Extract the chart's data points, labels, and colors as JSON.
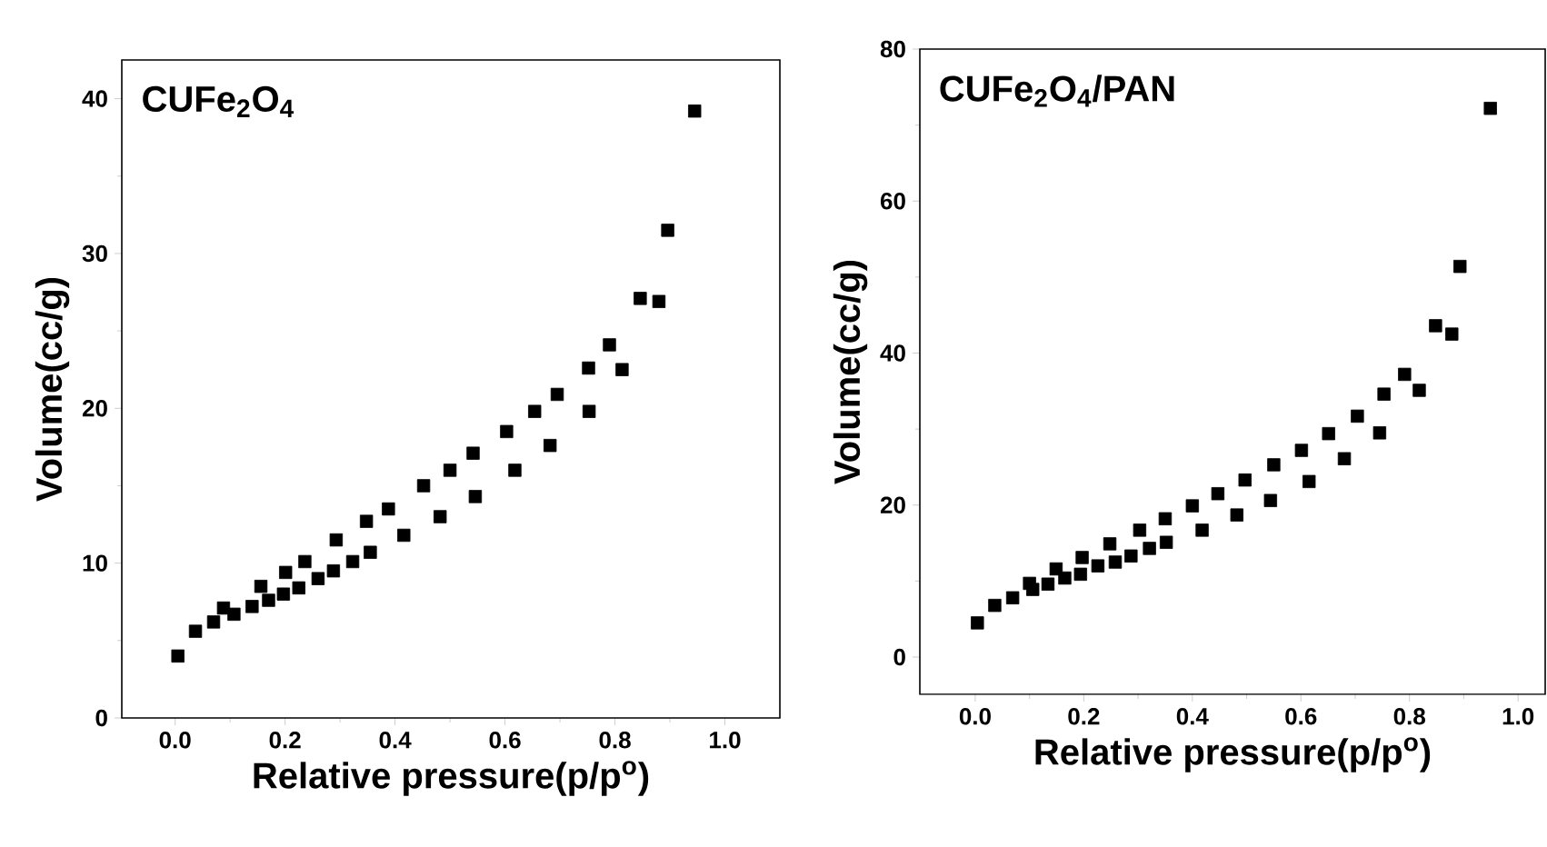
{
  "chart_data": [
    {
      "type": "scatter",
      "title": "CUFe$_{2}$O$_{4}$",
      "xlabel": "Relative pressure(p/p$^{o}$)",
      "ylabel": "Volume(cc/g)",
      "marker": "square",
      "xlim": [
        -0.097,
        1.1
      ],
      "ylim": [
        0,
        42.5
      ],
      "xticks": [
        {
          "value": 0,
          "label": "0.0"
        },
        {
          "value": 0.2,
          "label": "0.2"
        },
        {
          "value": 0.4,
          "label": "0.4"
        },
        {
          "value": 0.6,
          "label": "0.6"
        },
        {
          "value": 0.8,
          "label": "0.8"
        },
        {
          "value": 1,
          "label": "1.0"
        }
      ],
      "yticks": [
        0,
        10,
        20,
        30,
        40
      ],
      "series": [
        {
          "color": "#000000",
          "x": [
            0.005,
            0.037,
            0.07,
            0.088,
            0.107,
            0.14,
            0.156,
            0.17,
            0.197,
            0.201,
            0.225,
            0.236,
            0.26,
            0.288,
            0.293,
            0.323,
            0.348,
            0.355,
            0.388,
            0.416,
            0.452,
            0.482,
            0.5,
            0.542,
            0.546,
            0.603,
            0.618,
            0.654,
            0.682,
            0.695,
            0.752,
            0.753,
            0.79,
            0.813,
            0.846,
            0.88,
            0.896,
            0.945
          ],
          "values": [
            4.0,
            5.6,
            6.2,
            7.1,
            6.7,
            7.2,
            8.5,
            7.6,
            8.0,
            9.4,
            8.4,
            10.1,
            9.0,
            9.5,
            11.5,
            10.1,
            12.7,
            10.7,
            13.5,
            11.8,
            15.0,
            13.0,
            16.0,
            17.1,
            14.3,
            18.5,
            16.0,
            19.8,
            17.6,
            20.9,
            22.6,
            19.8,
            24.1,
            22.5,
            27.1,
            26.9,
            31.5,
            39.2
          ]
        }
      ]
    },
    {
      "type": "scatter",
      "title": "CUFe$_{2}$O$_{4}$/PAN",
      "xlabel": "Relative pressure(p/p$^{o}$)",
      "ylabel": "Volume(cc/g)",
      "marker": "square",
      "xlim": [
        -0.102,
        1.05
      ],
      "ylim": [
        -4.9,
        80
      ],
      "xticks": [
        {
          "value": 0,
          "label": "0.0"
        },
        {
          "value": 0.2,
          "label": "0.2"
        },
        {
          "value": 0.4,
          "label": "0.4"
        },
        {
          "value": 0.6,
          "label": "0.6"
        },
        {
          "value": 0.8,
          "label": "0.8"
        },
        {
          "value": 1,
          "label": "1.0"
        }
      ],
      "yticks": [
        0,
        20,
        40,
        60,
        80
      ],
      "series": [
        {
          "color": "#000000",
          "x": [
            0.004,
            0.036,
            0.069,
            0.1,
            0.106,
            0.134,
            0.149,
            0.165,
            0.194,
            0.197,
            0.226,
            0.248,
            0.258,
            0.287,
            0.303,
            0.321,
            0.35,
            0.352,
            0.4,
            0.418,
            0.447,
            0.482,
            0.497,
            0.544,
            0.55,
            0.601,
            0.615,
            0.651,
            0.68,
            0.704,
            0.745,
            0.753,
            0.791,
            0.818,
            0.848,
            0.878,
            0.893,
            0.949
          ],
          "values": [
            4.5,
            6.8,
            7.8,
            9.7,
            8.9,
            9.6,
            11.6,
            10.4,
            10.9,
            13.1,
            12.0,
            14.9,
            12.5,
            13.3,
            16.7,
            14.3,
            18.2,
            15.1,
            19.9,
            16.7,
            21.5,
            18.7,
            23.3,
            20.6,
            25.3,
            27.2,
            23.1,
            29.4,
            26.1,
            31.7,
            29.5,
            34.6,
            37.2,
            35.1,
            43.6,
            42.5,
            51.4,
            72.2
          ]
        }
      ]
    }
  ]
}
